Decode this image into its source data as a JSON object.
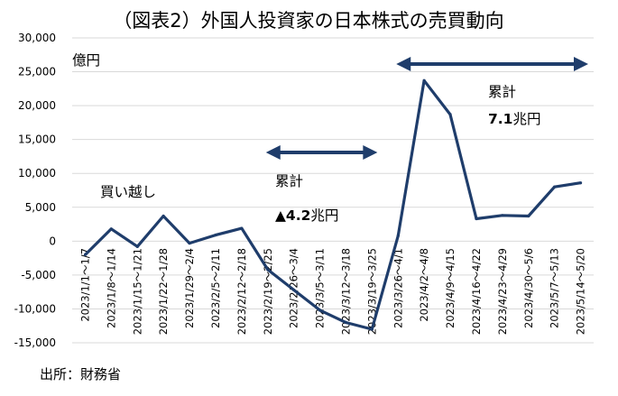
{
  "chart_data": {
    "type": "line",
    "title": "（図表2）外国人投資家の日本株式の売買動向",
    "unit_label": "億円",
    "source": "出所：財務省",
    "ylim": [
      -15000,
      30000
    ],
    "y_ticks": [
      "30,000",
      "25,000",
      "20,000",
      "15,000",
      "10,000",
      "5,000",
      "0",
      "-5,000",
      "-10,000",
      "-15,000"
    ],
    "grid": true,
    "categories": [
      "2023/1/1～1/7",
      "2023/1/8～1/14",
      "2023/1/15～1/21",
      "2023/1/22～1/28",
      "2023/1/29～2/4",
      "2023/2/5～2/11",
      "2023/2/12～2/18",
      "2023/2/19～2/25",
      "2023/2/26～3/4",
      "2023/3/5～3/11",
      "2023/3/12～3/18",
      "2023/3/19～3/25",
      "2023/3/26～4/1",
      "2023/4/2～4/8",
      "2023/4/9～4/15",
      "2023/4/16～4/22",
      "2023/4/23～4/29",
      "2023/4/30～5/6",
      "2023/5/7～5/13",
      "2023/5/14～5/20"
    ],
    "values": [
      -2000,
      1800,
      -800,
      3700,
      -300,
      900,
      1900,
      -4200,
      -7200,
      -10200,
      -12000,
      -13000,
      800,
      23700,
      18700,
      3300,
      3800,
      3700,
      8000,
      8600
    ],
    "color": "#1f3d6b",
    "annotations": {
      "buy_label": "買い越し",
      "period1_label": "累計",
      "period1_value": "▲4.2",
      "period1_unit": "兆円",
      "period2_label": "累計",
      "period2_value": "7.1",
      "period2_unit": "兆円"
    }
  }
}
